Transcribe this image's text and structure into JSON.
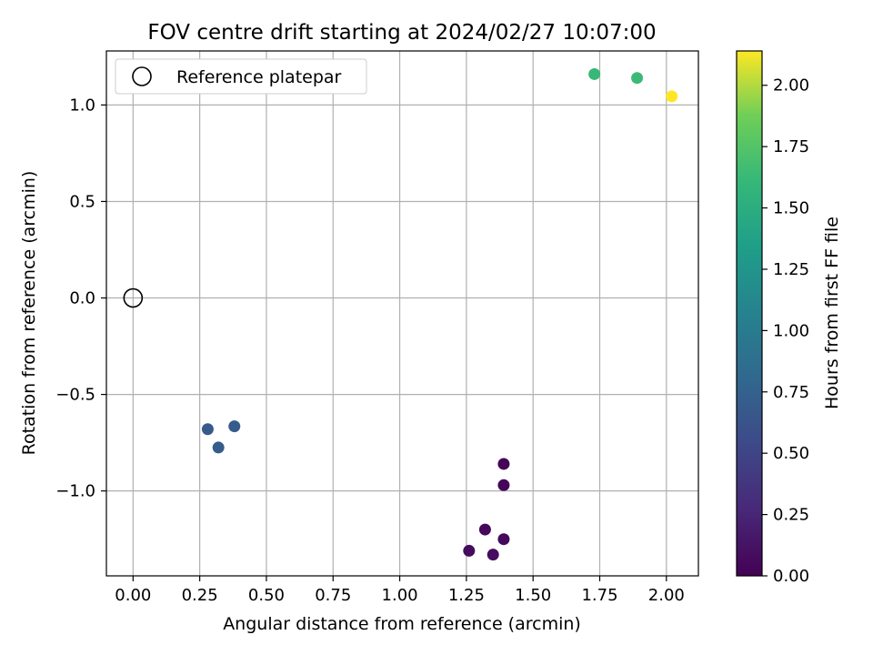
{
  "chart_data": {
    "type": "scatter",
    "title": "FOV centre drift starting at 2024/02/27 10:07:00",
    "xlabel": "Angular distance from reference (arcmin)",
    "ylabel": "Rotation from reference (arcmin)",
    "xlim": [
      -0.1,
      2.12
    ],
    "ylim": [
      -1.44,
      1.28
    ],
    "xticks": [
      0.0,
      0.25,
      0.5,
      0.75,
      1.0,
      1.25,
      1.5,
      1.75,
      2.0
    ],
    "xtick_labels": [
      "0.00",
      "0.25",
      "0.50",
      "0.75",
      "1.00",
      "1.25",
      "1.50",
      "1.75",
      "2.00"
    ],
    "yticks": [
      -1.0,
      -0.5,
      0.0,
      0.5,
      1.0
    ],
    "ytick_labels": [
      "−1.0",
      "−0.5",
      "0.0",
      "0.5",
      "1.0"
    ],
    "grid": true,
    "legend": {
      "placement": "top-left",
      "entries": [
        "Reference platepar"
      ]
    },
    "reference_point": {
      "x": 0.0,
      "y": 0.0
    },
    "colorbar": {
      "label": "Hours from first FF file",
      "range": [
        0.0,
        2.14
      ],
      "ticks": [
        0.0,
        0.25,
        0.5,
        0.75,
        1.0,
        1.25,
        1.5,
        1.75,
        2.0
      ],
      "tick_labels": [
        "0.00",
        "0.25",
        "0.50",
        "0.75",
        "1.00",
        "1.25",
        "1.50",
        "1.75",
        "2.00"
      ],
      "colormap": "viridis"
    },
    "points": [
      {
        "x": 1.39,
        "y": -0.86,
        "hours": 0.02
      },
      {
        "x": 1.39,
        "y": -0.97,
        "hours": 0.04
      },
      {
        "x": 1.32,
        "y": -1.2,
        "hours": 0.05
      },
      {
        "x": 1.39,
        "y": -1.25,
        "hours": 0.06
      },
      {
        "x": 1.26,
        "y": -1.31,
        "hours": 0.07
      },
      {
        "x": 1.35,
        "y": -1.33,
        "hours": 0.08
      },
      {
        "x": 0.28,
        "y": -0.68,
        "hours": 0.68
      },
      {
        "x": 0.38,
        "y": -0.665,
        "hours": 0.69
      },
      {
        "x": 0.32,
        "y": -0.775,
        "hours": 0.7
      },
      {
        "x": 1.73,
        "y": 1.16,
        "hours": 1.62
      },
      {
        "x": 1.89,
        "y": 1.14,
        "hours": 1.64
      },
      {
        "x": 2.02,
        "y": 1.045,
        "hours": 2.14
      }
    ]
  }
}
